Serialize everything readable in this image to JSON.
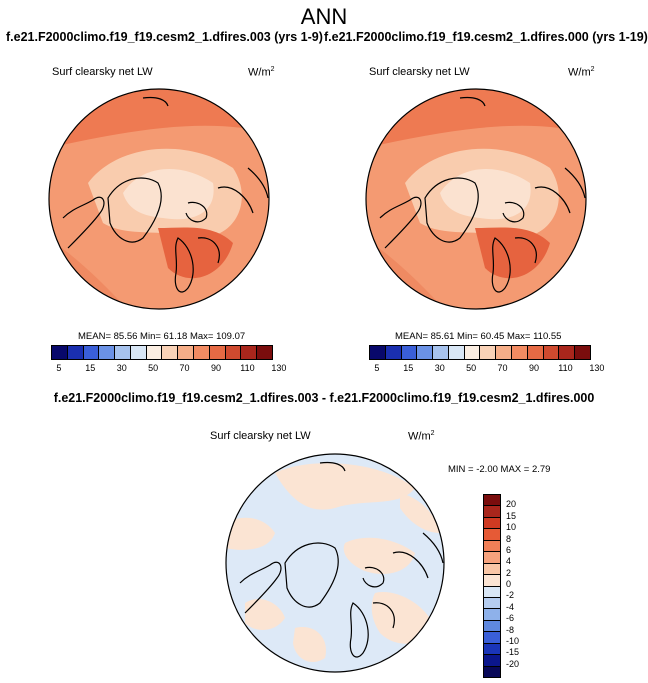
{
  "header": {
    "season": "ANN",
    "left_case": "f.e21.F2000climo.f19_f19.cesm2_1.dfires.003 (yrs 1-9)",
    "right_case": "f.e21.F2000climo.f19_f19.cesm2_1.dfires.000 (yrs 1-19)",
    "diff_title": "f.e21.F2000climo.f19_f19.cesm2_1.dfires.003 - f.e21.F2000climo.f19_f19.cesm2_1.dfires.000"
  },
  "panels": {
    "left": {
      "variable": "Surf clearsky net LW",
      "units": "W/m",
      "units_exp": "2",
      "stats": "MEAN=  85.56  Min=  61.18  Max= 109.07"
    },
    "right": {
      "variable": "Surf clearsky net LW",
      "units": "W/m",
      "units_exp": "2",
      "stats": "MEAN=  85.61  Min=  60.45  Max= 110.55"
    },
    "diff": {
      "variable": "Surf clearsky net LW",
      "units": "W/m",
      "units_exp": "2",
      "stats": "MIN = -2.00 MAX =  2.79"
    }
  },
  "colorbar_main": {
    "colors": [
      "#08086b",
      "#1a2fb0",
      "#3a5fd8",
      "#6b92e6",
      "#a7c3ee",
      "#d9e7f6",
      "#fbeee2",
      "#f9d2b7",
      "#f6ae88",
      "#f28b62",
      "#e66a44",
      "#cf4a2f",
      "#a9261c",
      "#7a0d0d"
    ],
    "ticks": [
      "5",
      "15",
      "30",
      "50",
      "70",
      "90",
      "110",
      "130"
    ]
  },
  "colorbar_diff": {
    "colors": [
      "#7a0d0d",
      "#a9261c",
      "#cf3a22",
      "#e65a36",
      "#f07f57",
      "#f6a27d",
      "#f9c6a6",
      "#fbe4d3",
      "#d9e7f6",
      "#b5cdf0",
      "#8eb1ea",
      "#5f88df",
      "#3a5fd8",
      "#1a35b8",
      "#0b168c",
      "#080858"
    ],
    "ticks": [
      "20",
      "15",
      "10",
      "8",
      "6",
      "4",
      "2",
      "0",
      "-2",
      "-4",
      "-6",
      "-8",
      "-10",
      "-15",
      "-20"
    ]
  }
}
